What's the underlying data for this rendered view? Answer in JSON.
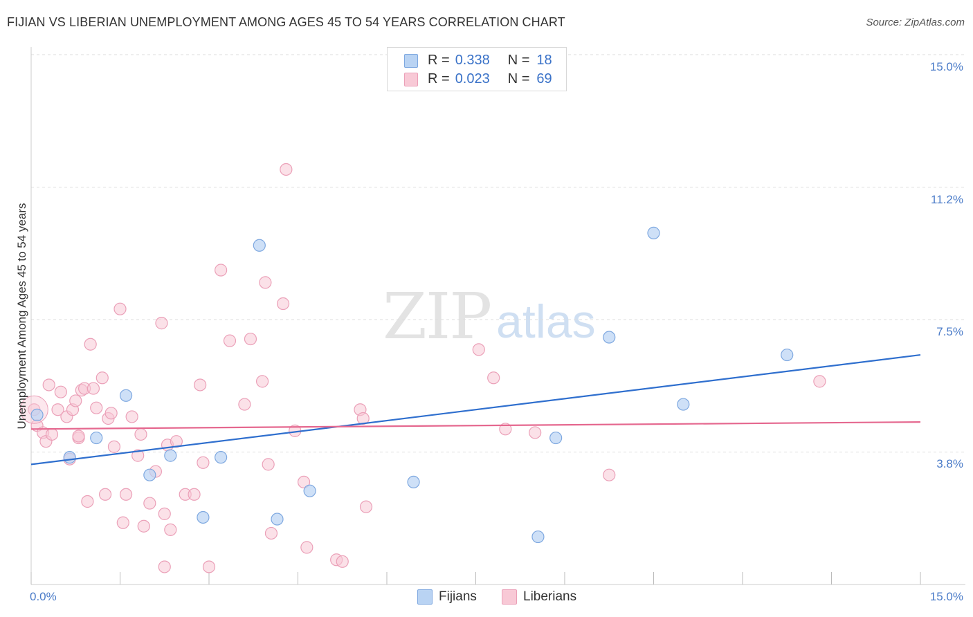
{
  "title": "FIJIAN VS LIBERIAN UNEMPLOYMENT AMONG AGES 45 TO 54 YEARS CORRELATION CHART",
  "source": "Source: ZipAtlas.com",
  "watermark": {
    "zip": "ZIP",
    "atlas": "atlas"
  },
  "legend": {
    "fijians": {
      "r_label": "R =",
      "r_value": "0.338",
      "n_label": "N =",
      "n_value": "18"
    },
    "liberians": {
      "r_label": "R =",
      "r_value": "0.023",
      "n_label": "N =",
      "n_value": "69"
    }
  },
  "bottom_legend": {
    "fijians": "Fijians",
    "liberians": "Liberians"
  },
  "y_ticks": [
    "15.0%",
    "11.2%",
    "7.5%",
    "3.8%"
  ],
  "x_ticks": {
    "min": "0.0%",
    "max": "15.0%"
  },
  "colors": {
    "fijians_fill": "#b9d3f3",
    "fijians_stroke": "#7ea8e0",
    "fijians_line": "#2f6fce",
    "liberians_fill": "#f8c9d6",
    "liberians_stroke": "#eba0b8",
    "liberians_line": "#e5688f",
    "grid": "#dddddd",
    "tick_text": "#4a7bc8"
  },
  "chart_data": {
    "type": "scatter",
    "title": "FIJIAN VS LIBERIAN UNEMPLOYMENT AMONG AGES 45 TO 54 YEARS CORRELATION CHART",
    "xlabel": "",
    "ylabel": "Unemployment Among Ages 45 to 54 years",
    "xlim": [
      0,
      15
    ],
    "ylim": [
      0,
      15.5
    ],
    "y_gridlines": [
      3.75,
      7.5,
      11.25,
      15.0
    ],
    "series": [
      {
        "name": "Fijians",
        "r": 0.338,
        "n": 18,
        "trend": {
          "x": [
            0,
            15
          ],
          "y": [
            3.4,
            6.5
          ]
        },
        "points": [
          {
            "x": 0.1,
            "y": 4.8
          },
          {
            "x": 0.65,
            "y": 3.6
          },
          {
            "x": 1.1,
            "y": 4.15
          },
          {
            "x": 1.6,
            "y": 5.35
          },
          {
            "x": 2.0,
            "y": 3.1
          },
          {
            "x": 2.35,
            "y": 3.65
          },
          {
            "x": 2.9,
            "y": 1.9
          },
          {
            "x": 3.2,
            "y": 3.6
          },
          {
            "x": 3.85,
            "y": 9.6
          },
          {
            "x": 4.15,
            "y": 1.85
          },
          {
            "x": 4.7,
            "y": 2.65
          },
          {
            "x": 6.45,
            "y": 2.9
          },
          {
            "x": 8.55,
            "y": 1.35
          },
          {
            "x": 8.85,
            "y": 4.15
          },
          {
            "x": 9.75,
            "y": 7.0
          },
          {
            "x": 11.0,
            "y": 5.1
          },
          {
            "x": 10.5,
            "y": 9.95
          },
          {
            "x": 12.75,
            "y": 6.5
          }
        ]
      },
      {
        "name": "Liberians",
        "r": 0.023,
        "n": 69,
        "trend": {
          "x": [
            0,
            15
          ],
          "y": [
            4.4,
            4.6
          ]
        },
        "points": [
          {
            "x": 0.05,
            "y": 4.95
          },
          {
            "x": 0.1,
            "y": 4.5
          },
          {
            "x": 0.2,
            "y": 4.3
          },
          {
            "x": 0.25,
            "y": 4.05
          },
          {
            "x": 0.3,
            "y": 5.65
          },
          {
            "x": 0.35,
            "y": 4.25
          },
          {
            "x": 0.45,
            "y": 4.95
          },
          {
            "x": 0.5,
            "y": 5.45
          },
          {
            "x": 0.6,
            "y": 4.75
          },
          {
            "x": 0.65,
            "y": 3.55
          },
          {
            "x": 0.7,
            "y": 4.95
          },
          {
            "x": 0.75,
            "y": 5.2
          },
          {
            "x": 0.8,
            "y": 4.15
          },
          {
            "x": 0.85,
            "y": 5.5
          },
          {
            "x": 0.9,
            "y": 5.55
          },
          {
            "x": 0.95,
            "y": 2.35
          },
          {
            "x": 1.0,
            "y": 6.8
          },
          {
            "x": 1.05,
            "y": 5.55
          },
          {
            "x": 1.1,
            "y": 5.0
          },
          {
            "x": 1.2,
            "y": 5.85
          },
          {
            "x": 1.25,
            "y": 2.55
          },
          {
            "x": 1.3,
            "y": 4.7
          },
          {
            "x": 1.35,
            "y": 4.85
          },
          {
            "x": 1.4,
            "y": 3.9
          },
          {
            "x": 1.5,
            "y": 7.8
          },
          {
            "x": 1.55,
            "y": 1.75
          },
          {
            "x": 1.6,
            "y": 2.55
          },
          {
            "x": 1.7,
            "y": 4.75
          },
          {
            "x": 1.8,
            "y": 3.65
          },
          {
            "x": 1.85,
            "y": 4.25
          },
          {
            "x": 1.9,
            "y": 1.65
          },
          {
            "x": 2.0,
            "y": 2.3
          },
          {
            "x": 2.1,
            "y": 3.2
          },
          {
            "x": 2.2,
            "y": 7.4
          },
          {
            "x": 2.25,
            "y": 2.0
          },
          {
            "x": 2.3,
            "y": 3.95
          },
          {
            "x": 2.35,
            "y": 1.55
          },
          {
            "x": 2.45,
            "y": 4.05
          },
          {
            "x": 2.6,
            "y": 2.55
          },
          {
            "x": 2.75,
            "y": 2.55
          },
          {
            "x": 2.85,
            "y": 5.65
          },
          {
            "x": 2.9,
            "y": 3.45
          },
          {
            "x": 3.0,
            "y": 0.5
          },
          {
            "x": 3.2,
            "y": 8.9
          },
          {
            "x": 3.35,
            "y": 6.9
          },
          {
            "x": 3.6,
            "y": 5.1
          },
          {
            "x": 3.7,
            "y": 6.95
          },
          {
            "x": 3.9,
            "y": 5.75
          },
          {
            "x": 3.95,
            "y": 8.55
          },
          {
            "x": 4.0,
            "y": 3.4
          },
          {
            "x": 4.05,
            "y": 1.45
          },
          {
            "x": 4.25,
            "y": 7.95
          },
          {
            "x": 4.3,
            "y": 11.75
          },
          {
            "x": 4.45,
            "y": 4.35
          },
          {
            "x": 4.6,
            "y": 2.9
          },
          {
            "x": 4.65,
            "y": 1.05
          },
          {
            "x": 5.15,
            "y": 0.7
          },
          {
            "x": 5.25,
            "y": 0.65
          },
          {
            "x": 5.55,
            "y": 4.95
          },
          {
            "x": 5.6,
            "y": 4.7
          },
          {
            "x": 5.65,
            "y": 2.2
          },
          {
            "x": 7.55,
            "y": 6.65
          },
          {
            "x": 7.8,
            "y": 5.85
          },
          {
            "x": 8.0,
            "y": 4.4
          },
          {
            "x": 8.5,
            "y": 4.3
          },
          {
            "x": 9.75,
            "y": 3.1
          },
          {
            "x": 13.3,
            "y": 5.75
          },
          {
            "x": 2.25,
            "y": 0.5
          },
          {
            "x": 0.8,
            "y": 4.2
          }
        ]
      }
    ]
  }
}
